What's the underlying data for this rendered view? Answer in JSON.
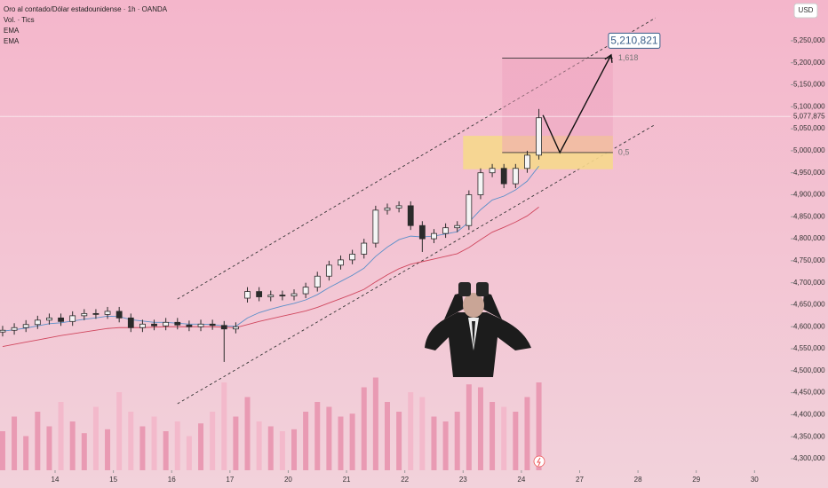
{
  "chart_data": {
    "type": "candlestick",
    "title": "Oro al contado/Dólar estadounidense · 1h · OANDA",
    "volume_label": "Vol. · Tics",
    "currency": "USD",
    "up_color": "#2b2b2b",
    "down_color": "#2b2b2b",
    "volume_up_color": "#e99ab3",
    "volume_down_color": "#f3b9cb",
    "x": [
      -0.9,
      -0.7,
      -0.5,
      -0.3,
      -0.1,
      0.1,
      0.3,
      0.5,
      0.7,
      0.9,
      1.1,
      1.3,
      1.5,
      1.7,
      1.9,
      2.1,
      2.3,
      2.5,
      2.7,
      2.9,
      3.1,
      3.3,
      3.5,
      3.7,
      3.9,
      4.1,
      4.3,
      4.5,
      4.7,
      4.9,
      5.1,
      5.3,
      5.5,
      5.7,
      5.9,
      6.1,
      6.3,
      6.5,
      6.7,
      6.9,
      7.1,
      7.3,
      7.5,
      7.7,
      7.9,
      8.1,
      8.3
    ],
    "open": [
      4588000,
      4592000,
      4598000,
      4605000,
      4615000,
      4620000,
      4612000,
      4625000,
      4630000,
      4628000,
      4635000,
      4620000,
      4598000,
      4606000,
      4602000,
      4610000,
      4604000,
      4600000,
      4606000,
      4603000,
      4595000,
      4665000,
      4680000,
      4668000,
      4672000,
      4670000,
      4675000,
      4690000,
      4715000,
      4740000,
      4752000,
      4765000,
      4790000,
      4865000,
      4870000,
      4875000,
      4830000,
      4800000,
      4812000,
      4825000,
      4830000,
      4900000,
      4950000,
      4960000,
      4925000,
      4960000,
      4990000
    ],
    "high": [
      4602000,
      4608000,
      4615000,
      4625000,
      4630000,
      4630000,
      4635000,
      4640000,
      4640000,
      4645000,
      4645000,
      4630000,
      4616000,
      4616000,
      4620000,
      4620000,
      4614000,
      4616000,
      4616000,
      4613000,
      4610000,
      4690000,
      4690000,
      4682000,
      4682000,
      4685000,
      4700000,
      4725000,
      4750000,
      4762000,
      4775000,
      4800000,
      4875000,
      4880000,
      4885000,
      4885000,
      4840000,
      4822000,
      4835000,
      4840000,
      4910000,
      4960000,
      4970000,
      4970000,
      4970000,
      5000000,
      5095000
    ],
    "low": [
      4578000,
      4582000,
      4588000,
      4595000,
      4605000,
      4602000,
      4602000,
      4615000,
      4618000,
      4618000,
      4610000,
      4588000,
      4588000,
      4592000,
      4592000,
      4594000,
      4590000,
      4590000,
      4593000,
      4520000,
      4585000,
      4655000,
      4658000,
      4658000,
      4660000,
      4660000,
      4665000,
      4680000,
      4705000,
      4730000,
      4742000,
      4755000,
      4780000,
      4855000,
      4860000,
      4820000,
      4770000,
      4790000,
      4802000,
      4815000,
      4820000,
      4890000,
      4940000,
      4915000,
      4915000,
      4950000,
      4980000
    ],
    "close": [
      4592000,
      4598000,
      4605000,
      4615000,
      4620000,
      4612000,
      4625000,
      4630000,
      4628000,
      4635000,
      4620000,
      4598000,
      4606000,
      4602000,
      4610000,
      4604000,
      4600000,
      4606000,
      4603000,
      4595000,
      4600000,
      4680000,
      4668000,
      4672000,
      4670000,
      4675000,
      4690000,
      4715000,
      4740000,
      4752000,
      4765000,
      4790000,
      4865000,
      4870000,
      4875000,
      4830000,
      4800000,
      4812000,
      4825000,
      4830000,
      4900000,
      4950000,
      4960000,
      4925000,
      4960000,
      4990000,
      5075000
    ],
    "volume": [
      40,
      55,
      35,
      60,
      45,
      70,
      50,
      38,
      65,
      42,
      80,
      60,
      45,
      55,
      40,
      50,
      35,
      48,
      60,
      90,
      55,
      75,
      50,
      45,
      40,
      42,
      60,
      70,
      65,
      55,
      58,
      85,
      95,
      70,
      60,
      80,
      75,
      55,
      50,
      60,
      88,
      85,
      70,
      65,
      60,
      75,
      90
    ],
    "series": [
      {
        "name": "EMA",
        "color": "#5b8fc9",
        "values": [
          4590000,
          4593000,
          4597000,
          4602000,
          4607000,
          4609000,
          4613000,
          4617000,
          4620000,
          4624000,
          4623000,
          4616000,
          4613000,
          4610000,
          4610000,
          4608000,
          4606000,
          4606000,
          4605000,
          4602000,
          4601000,
          4620000,
          4632000,
          4640000,
          4647000,
          4653000,
          4661000,
          4673000,
          4689000,
          4703000,
          4717000,
          4733000,
          4760000,
          4781000,
          4798000,
          4806000,
          4804000,
          4806000,
          4811000,
          4816000,
          4838000,
          4866000,
          4888000,
          4897000,
          4911000,
          4931000,
          4965000
        ]
      },
      {
        "name": "EMA",
        "color": "#d0485f",
        "values": [
          4555000,
          4560000,
          4565000,
          4570000,
          4575000,
          4580000,
          4584000,
          4588000,
          4592000,
          4596000,
          4598000,
          4598000,
          4598000,
          4599000,
          4600000,
          4600000,
          4600000,
          4600000,
          4600000,
          4599000,
          4598000,
          4605000,
          4612000,
          4618000,
          4624000,
          4630000,
          4636000,
          4644000,
          4654000,
          4664000,
          4674000,
          4685000,
          4702000,
          4718000,
          4732000,
          4742000,
          4748000,
          4754000,
          4760000,
          4766000,
          4780000,
          4798000,
          4815000,
          4826000,
          4838000,
          4852000,
          4872000
        ]
      }
    ],
    "last_price": {
      "value": 5077875,
      "label": "5,077,875"
    },
    "channel": {
      "upper": {
        "x": [
          2.1,
          10.3
        ],
        "values": [
          4663000,
          5302000
        ]
      },
      "lower": {
        "x": [
          2.1,
          10.3
        ],
        "values": [
          4425000,
          5060000
        ]
      }
    },
    "zone": {
      "x": [
        7.0,
        9.57
      ],
      "values": [
        4958000,
        5034000
      ]
    },
    "fib": {
      "x": [
        7.67,
        9.57
      ],
      "levels": [
        {
          "value": 5210821,
          "label": "1,618"
        },
        {
          "value": 4996000,
          "label": "0,5"
        }
      ],
      "target": {
        "value": 5210821,
        "label": "5,210,821"
      }
    },
    "projection": {
      "x": [
        8.37,
        8.66,
        9.54
      ],
      "values": [
        5081000,
        4996000,
        5218000
      ]
    },
    "xlim": [
      -0.945,
      12.62
    ],
    "ylim": [
      4273800,
      5342700
    ],
    "xticks": [
      {
        "value": 0,
        "label": "14"
      },
      {
        "value": 1,
        "label": "15"
      },
      {
        "value": 2,
        "label": "16"
      },
      {
        "value": 3,
        "label": "17"
      },
      {
        "value": 4,
        "label": "20"
      },
      {
        "value": 5,
        "label": "21"
      },
      {
        "value": 6,
        "label": "22"
      },
      {
        "value": 7,
        "label": "23"
      },
      {
        "value": 8,
        "label": "24"
      },
      {
        "value": 9,
        "label": "27"
      },
      {
        "value": 10,
        "label": "28"
      },
      {
        "value": 11,
        "label": "29"
      },
      {
        "value": 12,
        "label": "30"
      }
    ],
    "yticks": [
      {
        "value": 4300000,
        "label": "4,300,000"
      },
      {
        "value": 4350000,
        "label": "4,350,000"
      },
      {
        "value": 4400000,
        "label": "4,400,000"
      },
      {
        "value": 4450000,
        "label": "4,450,000"
      },
      {
        "value": 4500000,
        "label": "4,500,000"
      },
      {
        "value": 4550000,
        "label": "4,550,000"
      },
      {
        "value": 4600000,
        "label": "4,600,000"
      },
      {
        "value": 4650000,
        "label": "4,650,000"
      },
      {
        "value": 4700000,
        "label": "4,700,000"
      },
      {
        "value": 4750000,
        "label": "4,750,000"
      },
      {
        "value": 4800000,
        "label": "4,800,000"
      },
      {
        "value": 4850000,
        "label": "4,850,000"
      },
      {
        "value": 4900000,
        "label": "4,900,000"
      },
      {
        "value": 4950000,
        "label": "4,950,000"
      },
      {
        "value": 5000000,
        "label": "5,000,000"
      },
      {
        "value": 5050000,
        "label": "5,050,000"
      },
      {
        "value": 5100000,
        "label": "5,100,000"
      },
      {
        "value": 5150000,
        "label": "5,150,000"
      },
      {
        "value": 5200000,
        "label": "5,200,000"
      },
      {
        "value": 5250000,
        "label": "5,250,000"
      }
    ]
  }
}
